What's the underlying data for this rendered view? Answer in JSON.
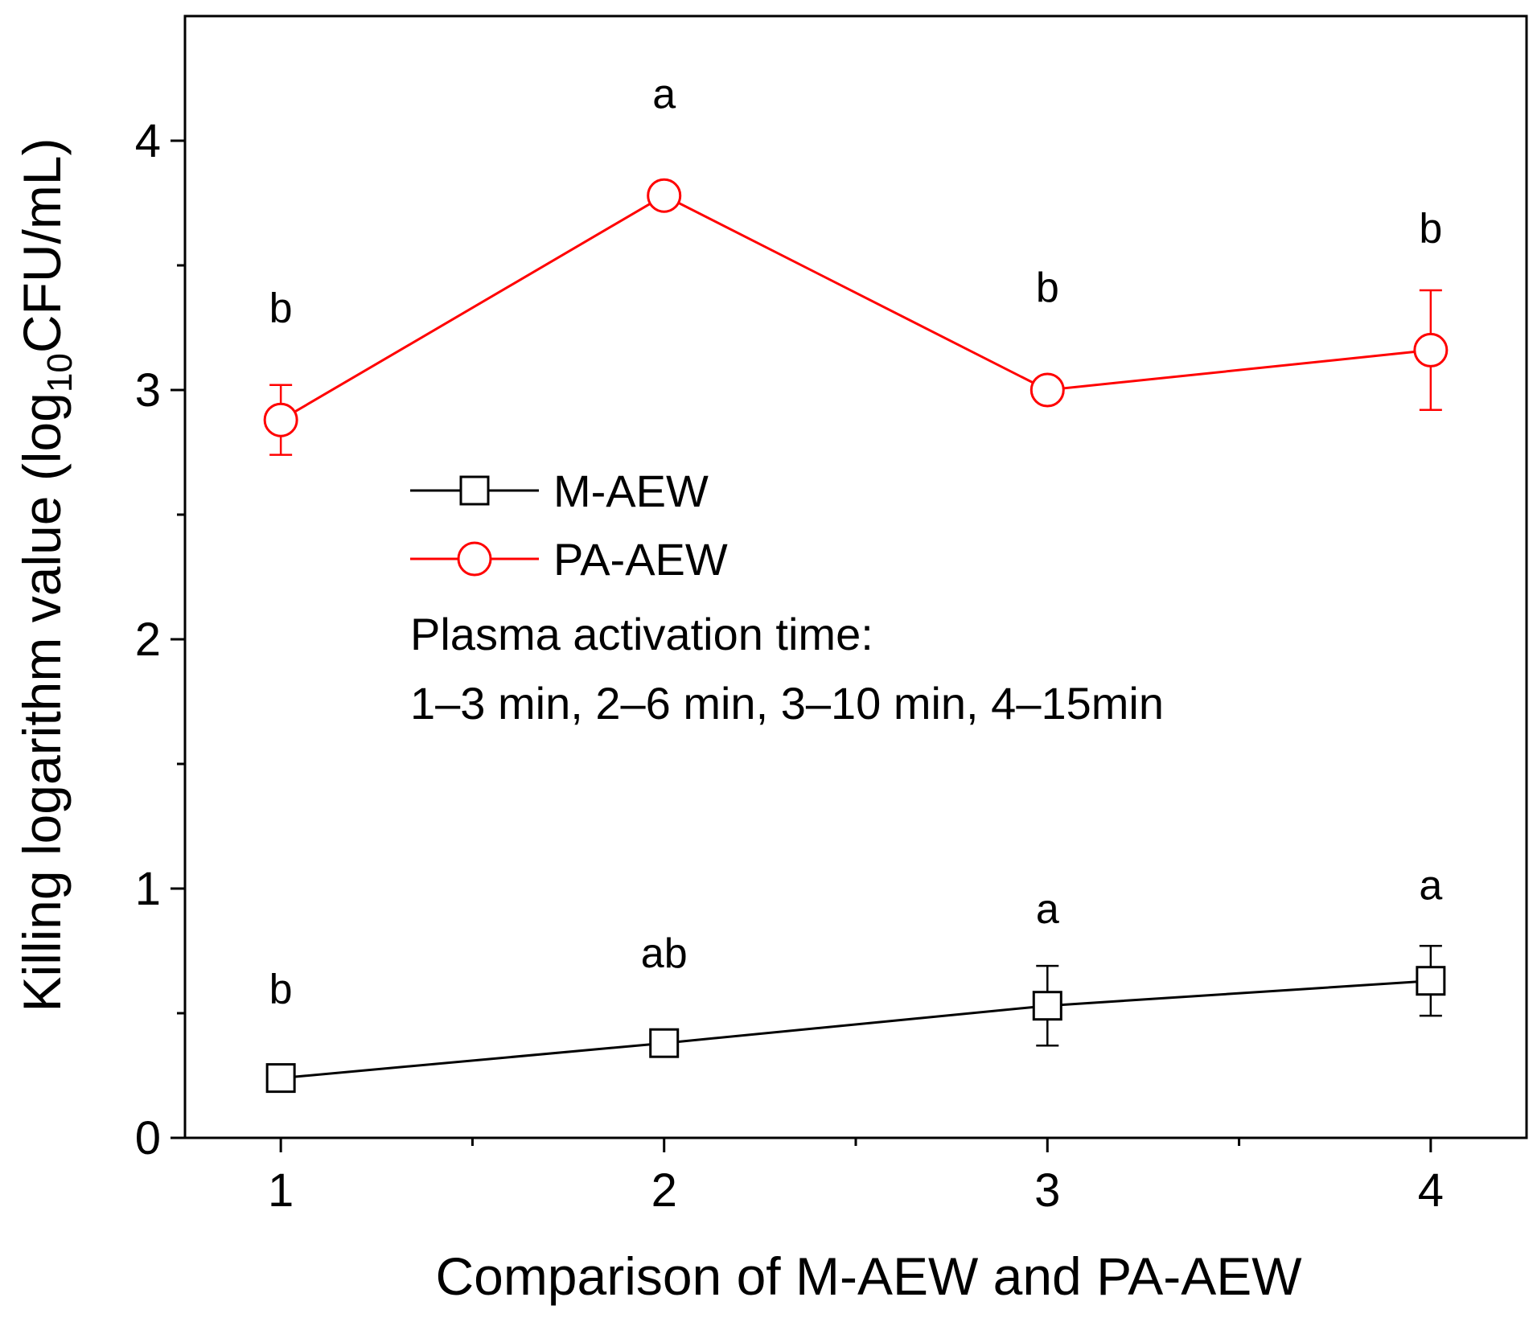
{
  "chart_data": {
    "type": "line",
    "title": "",
    "xlabel": "Comparison of M-AEW and PA-AEW",
    "ylabel": {
      "prefix": "Killing logarithm value (log",
      "subscript": "10",
      "suffix": "CFU/mL)"
    },
    "xlim": [
      0.75,
      4.25
    ],
    "ylim": [
      0,
      4.5
    ],
    "x_ticks": [
      1,
      2,
      3,
      4
    ],
    "x_minor_ticks": [
      1.5,
      2.5,
      3.5
    ],
    "x_tick_labels": [
      "1",
      "2",
      "3",
      "4"
    ],
    "y_ticks": [
      0,
      1,
      2,
      3,
      4
    ],
    "y_minor_ticks": [
      0.5,
      1.5,
      2.5,
      3.5
    ],
    "y_tick_labels": [
      "0",
      "1",
      "2",
      "3",
      "4"
    ],
    "grid": false,
    "legend_position": "center-left",
    "series": [
      {
        "name": "M-AEW",
        "color": "#000000",
        "marker": "square",
        "x": [
          1,
          2,
          3,
          4
        ],
        "values": [
          0.24,
          0.38,
          0.53,
          0.63
        ],
        "errors": [
          0.04,
          0.05,
          0.16,
          0.14
        ],
        "significance": [
          "b",
          "ab",
          "a",
          "a"
        ]
      },
      {
        "name": "PA-AEW",
        "color": "#ff0000",
        "marker": "circle",
        "x": [
          1,
          2,
          3,
          4
        ],
        "values": [
          2.88,
          3.78,
          3.0,
          3.16
        ],
        "errors": [
          0.14,
          0.03,
          0.04,
          0.24
        ],
        "significance": [
          "b",
          "a",
          "b",
          "b"
        ]
      }
    ],
    "annotations": [
      "Plasma activation time:",
      "1–3 min, 2–6 min, 3–10 min, 4–15min"
    ]
  }
}
